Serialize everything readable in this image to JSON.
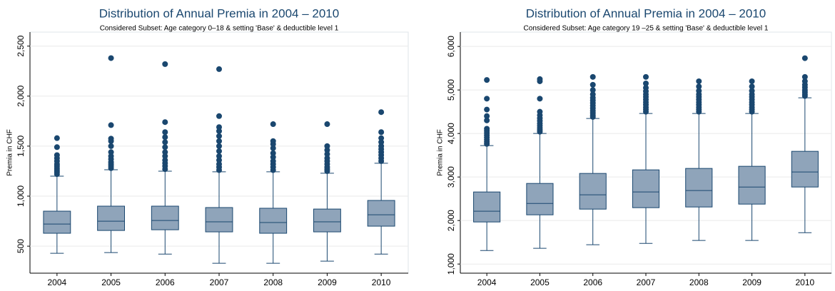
{
  "chart_data": [
    {
      "type": "box",
      "title": "Distribution of Annual Premia in 2004 – 2010",
      "subtitle": "Considered Subset: Age category 0–18 & setting 'Base' & deductible level 1",
      "y_label": "Premia in CHF",
      "box_color": "#8fa4ba",
      "line_color": "#1a476f",
      "grid": true,
      "categories": [
        "2004",
        "2005",
        "2006",
        "2007",
        "2008",
        "2009",
        "2010"
      ],
      "ylim": [
        230,
        2640
      ],
      "yticks": [
        500,
        {
          "value": 1000,
          "label": "1,000"
        },
        {
          "value": 1500,
          "label": "1,500"
        },
        {
          "value": 2000,
          "label": "2,000"
        },
        {
          "value": 2500,
          "label": "2,500"
        }
      ],
      "boxes": [
        {
          "low": 429,
          "q1": 629,
          "median": 721,
          "q3": 850,
          "high": 1200,
          "outliers": [
            1220,
            1240,
            1260,
            1280,
            1300,
            1320,
            1350,
            1380,
            1410,
            1490,
            1580
          ]
        },
        {
          "low": 436,
          "q1": 657,
          "median": 750,
          "q3": 900,
          "high": 1264,
          "outliers": [
            1280,
            1300,
            1320,
            1340,
            1370,
            1400,
            1440,
            1500,
            1550,
            1575,
            1710,
            2380
          ]
        },
        {
          "low": 421,
          "q1": 664,
          "median": 757,
          "q3": 900,
          "high": 1250,
          "outliers": [
            1270,
            1300,
            1330,
            1360,
            1400,
            1440,
            1490,
            1540,
            1590,
            1640,
            1740,
            2320
          ]
        },
        {
          "low": 329,
          "q1": 643,
          "median": 743,
          "q3": 886,
          "high": 1243,
          "outliers": [
            1260,
            1290,
            1320,
            1360,
            1400,
            1450,
            1500,
            1550,
            1600,
            1650,
            1690,
            1800,
            2270
          ]
        },
        {
          "low": 329,
          "q1": 629,
          "median": 736,
          "q3": 879,
          "high": 1243,
          "outliers": [
            1260,
            1290,
            1320,
            1350,
            1390,
            1430,
            1480,
            1520,
            1550,
            1720
          ]
        },
        {
          "low": 350,
          "q1": 643,
          "median": 743,
          "q3": 871,
          "high": 1229,
          "outliers": [
            1250,
            1270,
            1290,
            1320,
            1350,
            1380,
            1420,
            1460,
            1500,
            1720
          ]
        },
        {
          "low": 421,
          "q1": 700,
          "median": 814,
          "q3": 957,
          "high": 1329,
          "outliers": [
            1350,
            1380,
            1410,
            1440,
            1470,
            1500,
            1540,
            1580,
            1640,
            1840
          ]
        }
      ]
    },
    {
      "type": "box",
      "title": "Distribution of Annual Premia in 2004 – 2010",
      "subtitle": "Considered Subset:  Age category 19 –25 & setting 'Base' & deductible level 1",
      "y_label": "Premia in CHF",
      "box_color": "#8fa4ba",
      "line_color": "#1a476f",
      "grid": true,
      "categories": [
        "2004",
        "2005",
        "2006",
        "2007",
        "2008",
        "2009",
        "2010"
      ],
      "ylim": [
        790,
        6330
      ],
      "yticks": [
        {
          "value": 1000,
          "label": "1,000"
        },
        {
          "value": 2000,
          "label": "2,000"
        },
        {
          "value": 3000,
          "label": "3,000"
        },
        {
          "value": 4000,
          "label": "4,000"
        },
        {
          "value": 5000,
          "label": "5,000"
        },
        {
          "value": 6000,
          "label": "6,000"
        }
      ],
      "boxes": [
        {
          "low": 1311,
          "q1": 1967,
          "median": 2213,
          "q3": 2656,
          "high": 3721,
          "outliers": [
            3760,
            3810,
            3860,
            3910,
            3960,
            4010,
            4060,
            4110,
            4300,
            4400,
            4550,
            4800,
            5230
          ]
        },
        {
          "low": 1361,
          "q1": 2131,
          "median": 2393,
          "q3": 2852,
          "high": 4000,
          "outliers": [
            4040,
            4080,
            4130,
            4180,
            4230,
            4290,
            4350,
            4420,
            4500,
            4800,
            5200,
            5250
          ]
        },
        {
          "low": 1443,
          "q1": 2262,
          "median": 2590,
          "q3": 3082,
          "high": 4344,
          "outliers": [
            4380,
            4420,
            4470,
            4520,
            4580,
            4640,
            4700,
            4760,
            4820,
            4900,
            5000,
            5120,
            5300
          ]
        },
        {
          "low": 1475,
          "q1": 2295,
          "median": 2656,
          "q3": 3164,
          "high": 4459,
          "outliers": [
            4500,
            4550,
            4600,
            4660,
            4720,
            4780,
            4840,
            4900,
            4970,
            5050,
            5150,
            5300
          ]
        },
        {
          "low": 1541,
          "q1": 2311,
          "median": 2689,
          "q3": 3197,
          "high": 4459,
          "outliers": [
            4500,
            4550,
            4600,
            4660,
            4720,
            4780,
            4840,
            4900,
            4980,
            5080,
            5200
          ]
        },
        {
          "low": 1541,
          "q1": 2377,
          "median": 2770,
          "q3": 3246,
          "high": 4459,
          "outliers": [
            4500,
            4550,
            4600,
            4660,
            4720,
            4780,
            4840,
            4900,
            4980,
            5080,
            5200
          ]
        },
        {
          "low": 1721,
          "q1": 2770,
          "median": 3115,
          "q3": 3590,
          "high": 4820,
          "outliers": [
            4860,
            4900,
            4950,
            5000,
            5060,
            5120,
            5200,
            5300,
            5730
          ]
        }
      ]
    }
  ]
}
